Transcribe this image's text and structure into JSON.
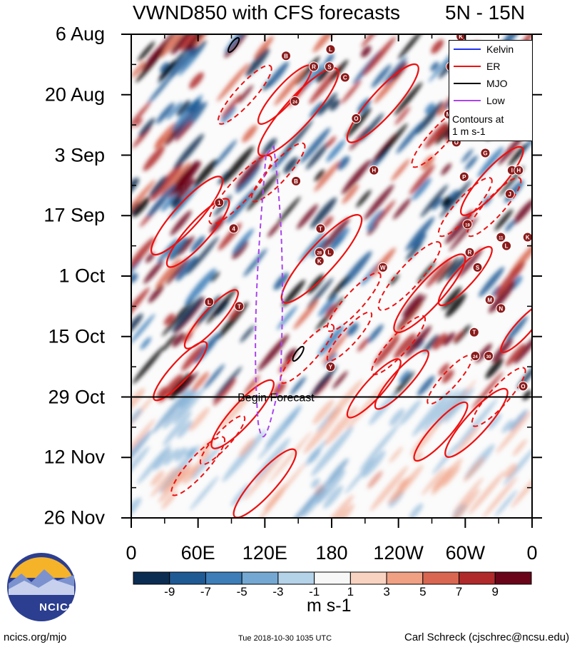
{
  "header": {
    "title": "VWND850 with CFS forecasts",
    "region": "5N - 15N"
  },
  "chart_data": {
    "type": "heatmap",
    "title": "VWND850 with CFS forecasts",
    "subtitle": "5N - 15N",
    "xlabel": "",
    "ylabel": "",
    "x_tick_labels": [
      "0",
      "60E",
      "120E",
      "180",
      "120W",
      "60W",
      "0"
    ],
    "x_ticks_deg": [
      0,
      60,
      120,
      180,
      240,
      300,
      360
    ],
    "xlim": [
      0,
      360
    ],
    "y_tick_labels": [
      "6 Aug",
      "20 Aug",
      "3 Sep",
      "17 Sep",
      "1 Oct",
      "15 Oct",
      "29 Oct",
      "12 Nov",
      "26 Nov"
    ],
    "y_ticks_days": [
      0,
      14,
      28,
      42,
      56,
      70,
      84,
      98,
      112
    ],
    "ylim_days": [
      0,
      112
    ],
    "forecast_start_day": 84,
    "forecast_label": "Begin Forecast",
    "units": "m s-1",
    "colorbar": {
      "tick_labels": [
        "-9",
        "-7",
        "-5",
        "-3",
        "-1",
        "1",
        "3",
        "5",
        "7",
        "9"
      ],
      "colors": [
        "#0c2d52",
        "#1f5a95",
        "#3d7eb8",
        "#74a8d2",
        "#b4d2e8",
        "#f7f7f7",
        "#f9d3c1",
        "#f0a184",
        "#d96650",
        "#b02a2b",
        "#6a0519"
      ]
    },
    "legend": {
      "entries": [
        {
          "name": "Kelvin",
          "color": "#2233ee"
        },
        {
          "name": "ER",
          "color": "#ee1111"
        },
        {
          "name": "MJO",
          "color": "#000000"
        },
        {
          "name": "Low",
          "color": "#aa44ee"
        }
      ],
      "note_line1": "Contours at",
      "note_line2": "1 m s-1",
      "placement": "top-right"
    },
    "storms": [
      {
        "id": "K",
        "lon": 296,
        "day": 0.5
      },
      {
        "id": "L",
        "lon": 179,
        "day": 3.5
      },
      {
        "id": "B",
        "lon": 139,
        "day": 5
      },
      {
        "id": "R",
        "lon": 164,
        "day": 7.5
      },
      {
        "id": "S",
        "lon": 178,
        "day": 7.5
      },
      {
        "id": "L",
        "lon": 287,
        "day": 7.5
      },
      {
        "id": "C",
        "lon": 192,
        "day": 10
      },
      {
        "id": "24",
        "lon": 147,
        "day": 15.5
      },
      {
        "id": "M",
        "lon": 285,
        "day": 18.5
      },
      {
        "id": "O",
        "lon": 202,
        "day": 19.5
      },
      {
        "id": "G",
        "lon": 300,
        "day": 20
      },
      {
        "id": "O",
        "lon": 292,
        "day": 25
      },
      {
        "id": "G",
        "lon": 318,
        "day": 27.5
      },
      {
        "id": "H",
        "lon": 218,
        "day": 31.5
      },
      {
        "id": "I",
        "lon": 342,
        "day": 31.5
      },
      {
        "id": "H",
        "lon": 348,
        "day": 31.5
      },
      {
        "id": "B",
        "lon": 148,
        "day": 34
      },
      {
        "id": "P",
        "lon": 299,
        "day": 33
      },
      {
        "id": "J",
        "lon": 340,
        "day": 37
      },
      {
        "id": "1",
        "lon": 79,
        "day": 39
      },
      {
        "id": "4",
        "lon": 92,
        "day": 45
      },
      {
        "id": "T",
        "lon": 170,
        "day": 45
      },
      {
        "id": "19",
        "lon": 302,
        "day": 44
      },
      {
        "id": "11",
        "lon": 332,
        "day": 47
      },
      {
        "id": "K",
        "lon": 356,
        "day": 47
      },
      {
        "id": "L",
        "lon": 337,
        "day": 49
      },
      {
        "id": "L",
        "lon": 178,
        "day": 50.5
      },
      {
        "id": "28",
        "lon": 169,
        "day": 50.5
      },
      {
        "id": "K",
        "lon": 169,
        "day": 52.5
      },
      {
        "id": "R",
        "lon": 304,
        "day": 50.5
      },
      {
        "id": "W",
        "lon": 226,
        "day": 54
      },
      {
        "id": "S",
        "lon": 311,
        "day": 54
      },
      {
        "id": "M",
        "lon": 322,
        "day": 61.5
      },
      {
        "id": "L",
        "lon": 70,
        "day": 62
      },
      {
        "id": "T",
        "lon": 97,
        "day": 63
      },
      {
        "id": "N",
        "lon": 332,
        "day": 63.5
      },
      {
        "id": "T",
        "lon": 308,
        "day": 69
      },
      {
        "id": "24",
        "lon": 309,
        "day": 74.5
      },
      {
        "id": "30",
        "lon": 321,
        "day": 74.5
      },
      {
        "id": "Y",
        "lon": 179,
        "day": 77
      },
      {
        "id": "O",
        "lon": 352,
        "day": 81.5
      }
    ]
  },
  "footer": {
    "logo_text": "NCICS",
    "website": "ncics.org/mjo",
    "timestamp": "Tue 2018-10-30 1035 UTC",
    "author": "Carl Schreck (cjschrec@ncsu.edu)"
  },
  "theme": {
    "er_color": "#ee1111",
    "mjo_color": "#000000",
    "low_color": "#aa44ee",
    "kelvin_color": "#2233ee",
    "storm_color": "#8b1a1a"
  }
}
